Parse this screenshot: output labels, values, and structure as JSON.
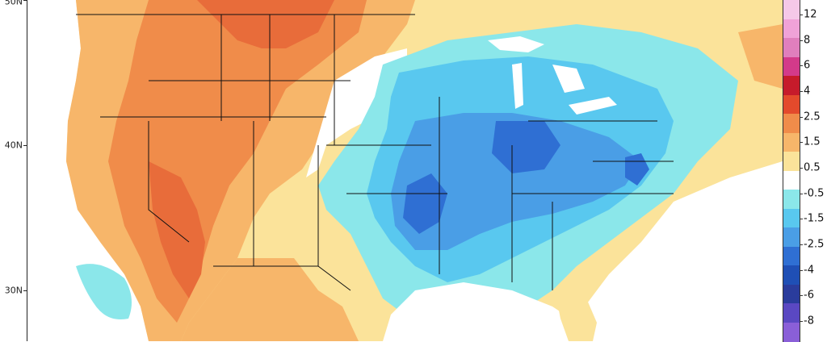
{
  "lat_axis": {
    "labels": [
      {
        "text": "50N",
        "lat": 50
      },
      {
        "text": "40N",
        "lat": 40
      },
      {
        "text": "30N",
        "lat": 30
      }
    ]
  },
  "colorbar": {
    "labels": [
      "12",
      "8",
      "6",
      "4",
      "2.5",
      "1.5",
      "0.5",
      "-0.5",
      "-1.5",
      "-2.5",
      "-4",
      "-6",
      "-8"
    ],
    "colors": [
      "#f5c8e8",
      "#f0a2d8",
      "#e07fbd",
      "#d33a8a",
      "#c61b2b",
      "#e34a2c",
      "#f08c4a",
      "#f7b66a",
      "#fbe39a",
      "#ffffff",
      "#8be7ea",
      "#59c8ef",
      "#4a9ee6",
      "#2f6fd3",
      "#1f4fb5",
      "#2a3c9c",
      "#5a48c2",
      "#8a5fd8"
    ]
  },
  "map": {
    "ocean_color": "#ffffff",
    "warm_colors": [
      "#f7b66a",
      "#f08c4a",
      "#e86c3a",
      "#fbe39a"
    ],
    "cold_colors": [
      "#8be7ea",
      "#59c8ef",
      "#4a9ee6",
      "#2f6fd3"
    ]
  }
}
